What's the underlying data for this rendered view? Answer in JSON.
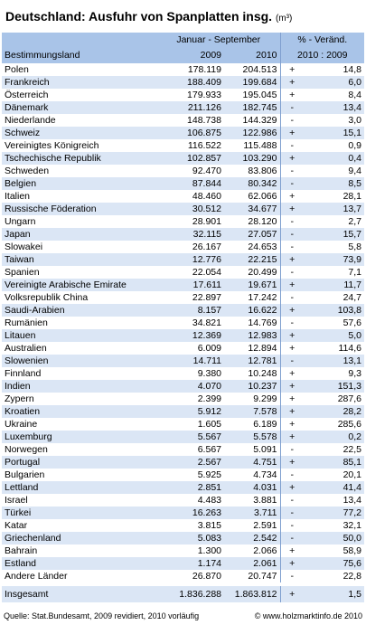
{
  "title": "Deutschland: Ausfuhr von Spanplatten insg.",
  "unit": "(m³)",
  "header": {
    "country": "Bestimmungsland",
    "period": "Januar - September",
    "y1": "2009",
    "y2": "2010",
    "change": "% - Veränd.",
    "ratio": "2010 : 2009"
  },
  "rows": [
    [
      "Polen",
      "178.119",
      "204.513",
      "+",
      "14,8"
    ],
    [
      "Frankreich",
      "188.409",
      "199.684",
      "+",
      "6,0"
    ],
    [
      "Österreich",
      "179.933",
      "195.045",
      "+",
      "8,4"
    ],
    [
      "Dänemark",
      "211.126",
      "182.745",
      "-",
      "13,4"
    ],
    [
      "Niederlande",
      "148.738",
      "144.329",
      "-",
      "3,0"
    ],
    [
      "Schweiz",
      "106.875",
      "122.986",
      "+",
      "15,1"
    ],
    [
      "Vereinigtes Königreich",
      "116.522",
      "115.488",
      "-",
      "0,9"
    ],
    [
      "Tschechische Republik",
      "102.857",
      "103.290",
      "+",
      "0,4"
    ],
    [
      "Schweden",
      "92.470",
      "83.806",
      "-",
      "9,4"
    ],
    [
      "Belgien",
      "87.844",
      "80.342",
      "-",
      "8,5"
    ],
    [
      "Italien",
      "48.460",
      "62.066",
      "+",
      "28,1"
    ],
    [
      "Russische Föderation",
      "30.512",
      "34.677",
      "+",
      "13,7"
    ],
    [
      "Ungarn",
      "28.901",
      "28.120",
      "-",
      "2,7"
    ],
    [
      "Japan",
      "32.115",
      "27.057",
      "-",
      "15,7"
    ],
    [
      "Slowakei",
      "26.167",
      "24.653",
      "-",
      "5,8"
    ],
    [
      "Taiwan",
      "12.776",
      "22.215",
      "+",
      "73,9"
    ],
    [
      "Spanien",
      "22.054",
      "20.499",
      "-",
      "7,1"
    ],
    [
      "Vereinigte Arabische Emirate",
      "17.611",
      "19.671",
      "+",
      "11,7"
    ],
    [
      "Volksrepublik China",
      "22.897",
      "17.242",
      "-",
      "24,7"
    ],
    [
      "Saudi-Arabien",
      "8.157",
      "16.622",
      "+",
      "103,8"
    ],
    [
      "Rumänien",
      "34.821",
      "14.769",
      "-",
      "57,6"
    ],
    [
      "Litauen",
      "12.369",
      "12.983",
      "+",
      "5,0"
    ],
    [
      "Australien",
      "6.009",
      "12.894",
      "+",
      "114,6"
    ],
    [
      "Slowenien",
      "14.711",
      "12.781",
      "-",
      "13,1"
    ],
    [
      "Finnland",
      "9.380",
      "10.248",
      "+",
      "9,3"
    ],
    [
      "Indien",
      "4.070",
      "10.237",
      "+",
      "151,3"
    ],
    [
      "Zypern",
      "2.399",
      "9.299",
      "+",
      "287,6"
    ],
    [
      "Kroatien",
      "5.912",
      "7.578",
      "+",
      "28,2"
    ],
    [
      "Ukraine",
      "1.605",
      "6.189",
      "+",
      "285,6"
    ],
    [
      "Luxemburg",
      "5.567",
      "5.578",
      "+",
      "0,2"
    ],
    [
      "Norwegen",
      "6.567",
      "5.091",
      "-",
      "22,5"
    ],
    [
      "Portugal",
      "2.567",
      "4.751",
      "+",
      "85,1"
    ],
    [
      "Bulgarien",
      "5.925",
      "4.734",
      "-",
      "20,1"
    ],
    [
      "Lettland",
      "2.851",
      "4.031",
      "+",
      "41,4"
    ],
    [
      "Israel",
      "4.483",
      "3.881",
      "-",
      "13,4"
    ],
    [
      "Türkei",
      "16.263",
      "3.711",
      "-",
      "77,2"
    ],
    [
      "Katar",
      "3.815",
      "2.591",
      "-",
      "32,1"
    ],
    [
      "Griechenland",
      "5.083",
      "2.542",
      "-",
      "50,0"
    ],
    [
      "Bahrain",
      "1.300",
      "2.066",
      "+",
      "58,9"
    ],
    [
      "Estland",
      "1.174",
      "2.061",
      "+",
      "75,6"
    ],
    [
      "Andere Länder",
      "26.870",
      "20.747",
      "-",
      "22,8"
    ]
  ],
  "total": [
    "Insgesamt",
    "1.836.288",
    "1.863.812",
    "+",
    "1,5"
  ],
  "footer": {
    "source": "Quelle: Stat.Bundesamt, 2009 revidiert, 2010 vorläufig",
    "copyright": "© www.holzmarktinfo.de 2010"
  }
}
